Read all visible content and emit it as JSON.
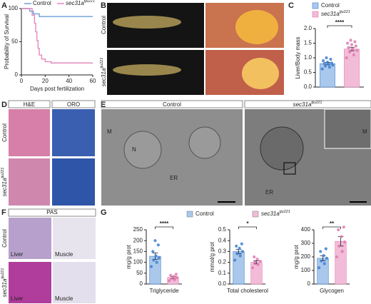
{
  "figure": {
    "panels": [
      "A",
      "B",
      "C",
      "D",
      "E",
      "F",
      "G"
    ],
    "B": {
      "rows": [
        "Control",
        {
          "text": "sec31a",
          "sup": "tju221"
        }
      ]
    },
    "D": {
      "cols": [
        "H&E",
        "ORO"
      ],
      "rows": [
        "Control",
        {
          "text": "sec31a",
          "sup": "tju221"
        }
      ]
    },
    "E": {
      "cols": [
        "Control",
        {
          "text": "sec31a",
          "sup": "tju221"
        }
      ],
      "marks": [
        "N",
        "ER",
        "M",
        "ER",
        "M"
      ]
    },
    "F": {
      "header": "PAS",
      "cols": [
        "Liver",
        "Muscle"
      ],
      "rows": [
        "Control",
        {
          "text": "sec31a",
          "sup": "tju221"
        }
      ]
    },
    "G": {
      "legend": [
        {
          "name": "Control",
          "color": "#a9c8ec"
        },
        {
          "name": {
            "text": "sec31a",
            "sup": "tju221"
          },
          "color": "#f2bcd8"
        }
      ]
    }
  },
  "chart_data": [
    {
      "type": "line",
      "x_label": "Days post fertilization",
      "y_label": "Probability of Survival",
      "xlim": [
        0,
        60
      ],
      "xticks": [
        0,
        20,
        40,
        60
      ],
      "ylim": [
        0,
        100
      ],
      "yticks": [
        0,
        50,
        100
      ],
      "series": [
        {
          "name": "Control",
          "color": "#6a9fd8",
          "x": [
            0,
            7,
            7,
            10,
            10,
            15,
            15,
            60
          ],
          "values": [
            100,
            100,
            96,
            96,
            92,
            92,
            88,
            88
          ]
        },
        {
          "name": {
            "text": "sec31a",
            "sup": "tju221"
          },
          "color": "#e489bb",
          "x": [
            0,
            9,
            9,
            11,
            11,
            12,
            12,
            13,
            13,
            14,
            14,
            15,
            15,
            17,
            17,
            20,
            20,
            25,
            25,
            60
          ],
          "values": [
            100,
            100,
            90,
            90,
            78,
            78,
            65,
            65,
            52,
            52,
            40,
            40,
            30,
            30,
            24,
            24,
            20,
            20,
            18,
            18
          ]
        }
      ]
    },
    {
      "type": "bar",
      "y_label": "Liver/Body mass",
      "ylim": [
        0,
        2
      ],
      "yticks": [
        {
          "value": 0,
          "label": "0.0"
        },
        0.5,
        {
          "value": 1,
          "label": "1.0"
        },
        1.5,
        {
          "value": 2,
          "label": "2.0"
        }
      ],
      "annotation": "****",
      "series": [
        {
          "name": "Control",
          "fill": "#a9c8ec",
          "color": "#3f7fd0",
          "values": [
            0.8
          ],
          "errors": [
            0.04
          ],
          "points": [
            0.62,
            0.68,
            0.72,
            0.75,
            0.78,
            0.8,
            0.82,
            0.85,
            0.9,
            0.95,
            1.0
          ]
        },
        {
          "name": {
            "text": "sec31a",
            "sup": "tju221"
          },
          "fill": "#f2bcd8",
          "color": "#e079b0",
          "values": [
            1.3
          ],
          "errors": [
            0.06
          ],
          "points": [
            1.0,
            1.1,
            1.2,
            1.25,
            1.3,
            1.35,
            1.4,
            1.45,
            1.5,
            1.55,
            1.6
          ]
        }
      ]
    },
    {
      "type": "bar",
      "x_label": "Triglyceride",
      "y_label": "mg/g prot",
      "ylim": [
        0,
        250
      ],
      "yticks": [
        0,
        50,
        100,
        150,
        200,
        250
      ],
      "annotation": "****",
      "series": [
        {
          "fill": "#a9c8ec",
          "color": "#3f7fd0",
          "values": [
            128
          ],
          "errors": [
            15
          ],
          "points": [
            80,
            100,
            110,
            120,
            130,
            150,
            180,
            200
          ]
        },
        {
          "fill": "#f2bcd8",
          "color": "#e079b0",
          "values": [
            30
          ],
          "errors": [
            5
          ],
          "points": [
            15,
            20,
            25,
            30,
            35,
            40,
            45
          ]
        }
      ]
    },
    {
      "type": "bar",
      "x_label": "Total cholesterol",
      "y_label": "mmol/g prot",
      "ylim": [
        0,
        0.5
      ],
      "yticks": [
        {
          "value": 0,
          "label": "0.0"
        },
        0.1,
        0.2,
        0.3,
        0.4,
        0.5
      ],
      "annotation": "*",
      "series": [
        {
          "fill": "#a9c8ec",
          "color": "#3f7fd0",
          "values": [
            0.3
          ],
          "errors": [
            0.02
          ],
          "points": [
            0.22,
            0.26,
            0.28,
            0.3,
            0.33,
            0.35,
            0.37
          ]
        },
        {
          "fill": "#f2bcd8",
          "color": "#e079b0",
          "values": [
            0.2
          ],
          "errors": [
            0.015
          ],
          "points": [
            0.15,
            0.18,
            0.2,
            0.21,
            0.23,
            0.25
          ]
        }
      ]
    },
    {
      "type": "bar",
      "x_label": "Glycogen",
      "y_label": "mg/g prot",
      "ylim": [
        0,
        400
      ],
      "yticks": [
        0,
        100,
        200,
        300,
        400
      ],
      "annotation": "**",
      "series": [
        {
          "fill": "#a9c8ec",
          "color": "#3f7fd0",
          "values": [
            190
          ],
          "errors": [
            18
          ],
          "points": [
            120,
            150,
            170,
            190,
            210,
            240,
            260
          ]
        },
        {
          "fill": "#f2bcd8",
          "color": "#e079b0",
          "values": [
            315
          ],
          "errors": [
            35
          ],
          "points": [
            200,
            240,
            280,
            310,
            350,
            400,
            420
          ]
        }
      ]
    }
  ]
}
